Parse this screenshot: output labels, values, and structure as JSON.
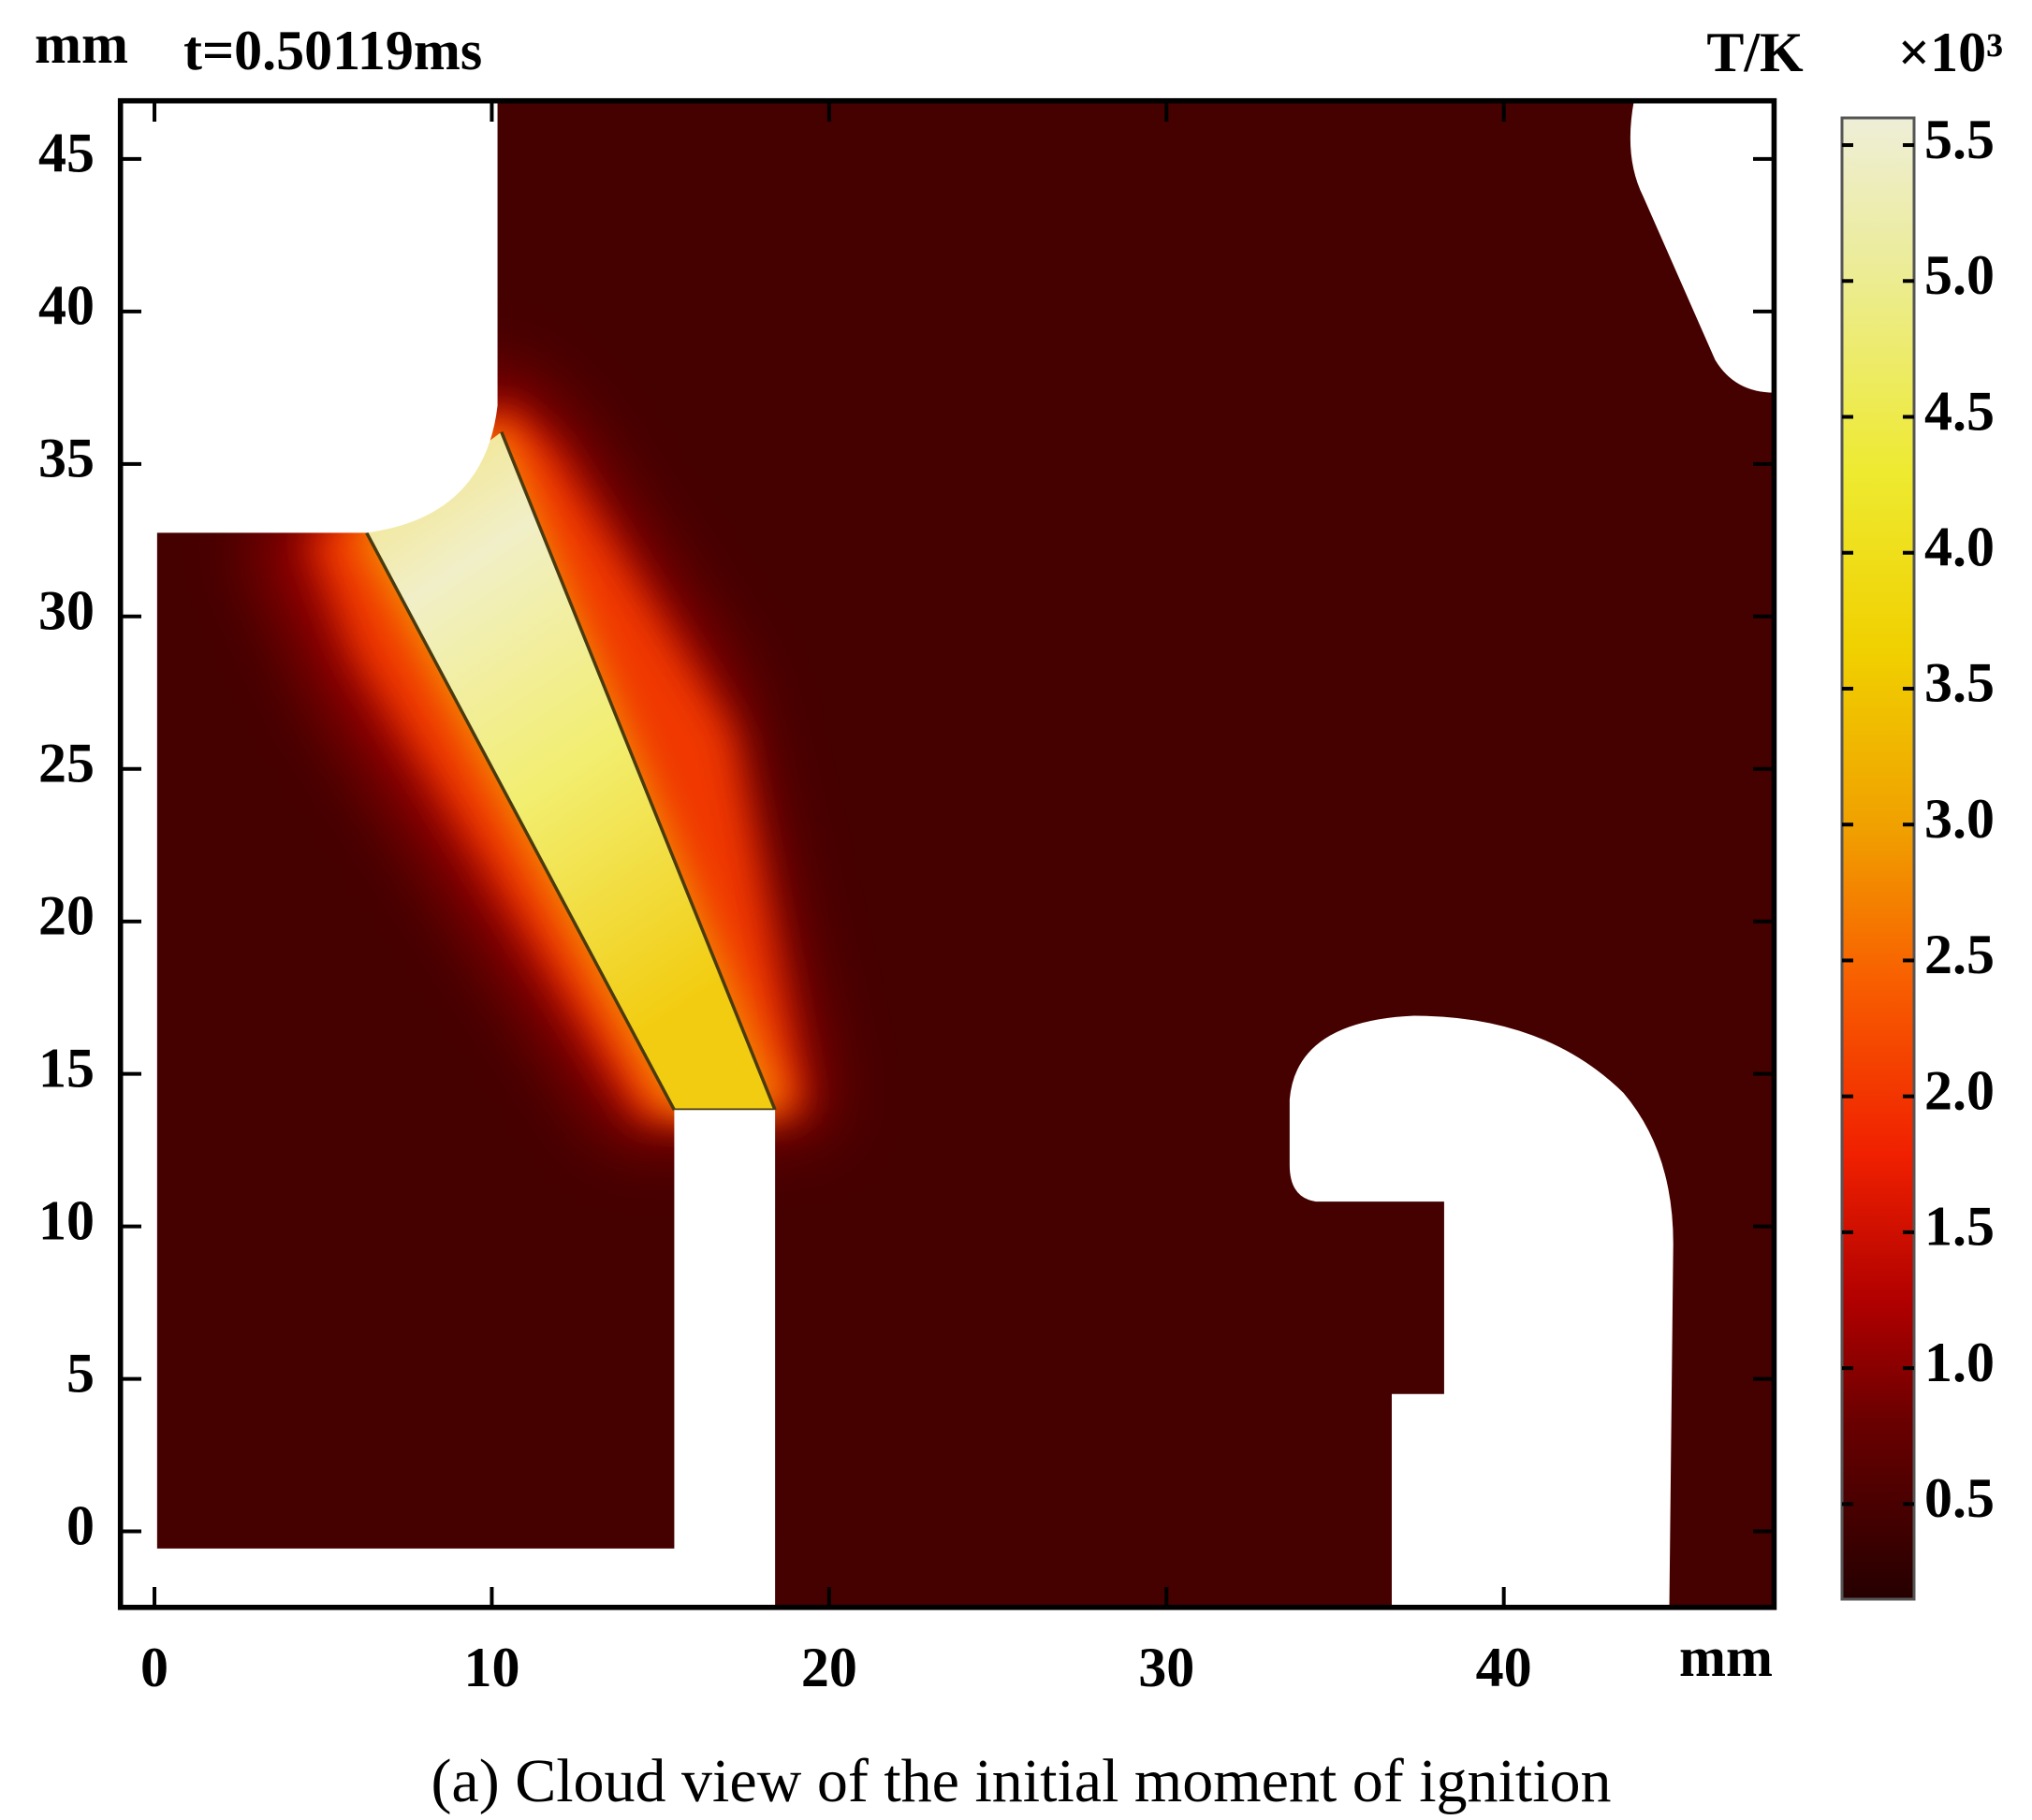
{
  "chart_data": {
    "type": "heatmap",
    "title": "t=0.50119ms",
    "x_label": "mm",
    "y_label": "mm",
    "xlim": [
      -1,
      48
    ],
    "ylim": [
      -2.5,
      46.9
    ],
    "xticks": [
      0,
      10,
      20,
      30,
      40
    ],
    "yticks": [
      0,
      5,
      10,
      15,
      20,
      25,
      30,
      35,
      40,
      45
    ],
    "colorbar": {
      "label": "T/K",
      "multiplier": "×10³",
      "lim": [
        0.15,
        5.6
      ],
      "ticks": [
        0.5,
        {
          "value": 1,
          "label": "1.0"
        },
        1.5,
        {
          "value": 2,
          "label": "2.0"
        },
        2.5,
        {
          "value": 3,
          "label": "3.0"
        },
        3.5,
        {
          "value": 4,
          "label": "4.0"
        },
        4.5,
        {
          "value": 5,
          "label": "5.0"
        },
        5.5
      ]
    }
  },
  "caption": "(a) Cloud view of the initial moment of ignition"
}
